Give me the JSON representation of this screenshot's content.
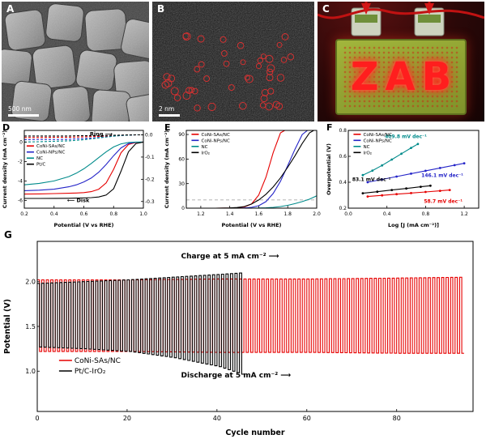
{
  "panels": {
    "a": {
      "label": "A",
      "scale_bar": "500 nm"
    },
    "b": {
      "label": "B",
      "scale_bar": "2 nm",
      "circle_count": 46
    },
    "c": {
      "label": "C",
      "led_text": "ZAB"
    },
    "d": {
      "label": "D"
    },
    "e": {
      "label": "E"
    },
    "f": {
      "label": "F"
    },
    "g": {
      "label": "G"
    }
  },
  "colors": {
    "coni_sas_red": "#e60000",
    "coni_nps_blue": "#2424c8",
    "nc_teal": "#008B8B",
    "ptc_black": "#000000",
    "iro2_black": "#000000",
    "circle_red": "#e03030",
    "led_red": "#ff1e1e",
    "pcb_green": "#93a832"
  },
  "chart_data": [
    {
      "id": "panel-d",
      "type": "line",
      "xlabel": "Potential (V vs RHE)",
      "ylabel": "Current density (mA cm⁻²)",
      "xlim": [
        0.2,
        1.0
      ],
      "xticks": [
        "0.2",
        "0.4",
        "0.6",
        "0.8",
        "1.0"
      ],
      "ylim": [
        -6.8,
        1.2
      ],
      "yticks": [
        "0",
        "-2",
        "-4",
        "-6"
      ],
      "y2lim": [
        -0.33,
        0.02
      ],
      "y2ticks": [
        "0.0",
        "-0.1",
        "-0.2",
        "-0.3"
      ],
      "x": [
        0.2,
        0.3,
        0.4,
        0.5,
        0.55,
        0.6,
        0.65,
        0.7,
        0.75,
        0.8,
        0.85,
        0.9,
        0.95,
        1.0
      ],
      "series": [
        {
          "name": "CoNi-SAs/NC disk",
          "color": "#e60000",
          "y": [
            -5.35,
            -5.33,
            -5.3,
            -5.27,
            -5.24,
            -5.2,
            -5.1,
            -4.85,
            -4.2,
            -2.8,
            -1.1,
            -0.25,
            -0.03,
            0
          ]
        },
        {
          "name": "CoNi-NPs/NC disk",
          "color": "#2424c8",
          "y": [
            -5.0,
            -4.95,
            -4.85,
            -4.6,
            -4.4,
            -4.1,
            -3.7,
            -3.1,
            -2.3,
            -1.4,
            -0.6,
            -0.15,
            -0.02,
            0
          ]
        },
        {
          "name": "NC disk",
          "color": "#008B8B",
          "y": [
            -4.4,
            -4.25,
            -4.0,
            -3.55,
            -3.2,
            -2.75,
            -2.2,
            -1.6,
            -1.0,
            -0.5,
            -0.18,
            -0.04,
            0,
            0
          ]
        },
        {
          "name": "Pt/C disk",
          "color": "#000000",
          "y": [
            -5.8,
            -5.8,
            -5.79,
            -5.78,
            -5.77,
            -5.75,
            -5.72,
            -5.65,
            -5.45,
            -4.8,
            -3.0,
            -1.0,
            -0.15,
            0
          ]
        },
        {
          "name": "CoNi-SAs/NC ring",
          "color": "#e60000",
          "axis": "right",
          "dash": true,
          "y": [
            -0.012,
            -0.012,
            -0.011,
            -0.011,
            -0.01,
            -0.009,
            -0.008,
            -0.007,
            -0.006,
            -0.004,
            -0.002,
            -0.001,
            0,
            0
          ]
        },
        {
          "name": "CoNi-NPs/NC ring",
          "color": "#2424c8",
          "axis": "right",
          "dash": true,
          "y": [
            -0.022,
            -0.021,
            -0.021,
            -0.02,
            -0.018,
            -0.017,
            -0.015,
            -0.012,
            -0.009,
            -0.006,
            -0.003,
            -0.001,
            0,
            0
          ]
        },
        {
          "name": "NC ring",
          "color": "#008B8B",
          "axis": "right",
          "dash": true,
          "y": [
            -0.032,
            -0.031,
            -0.029,
            -0.027,
            -0.025,
            -0.022,
            -0.018,
            -0.014,
            -0.01,
            -0.006,
            -0.003,
            -0.001,
            0,
            0
          ]
        },
        {
          "name": "Pt/C ring",
          "color": "#000000",
          "axis": "right",
          "dash": true,
          "y": [
            -0.005,
            -0.005,
            -0.005,
            -0.005,
            -0.004,
            -0.004,
            -0.004,
            -0.003,
            -0.003,
            -0.002,
            -0.001,
            0,
            0,
            0
          ]
        }
      ],
      "legend": {
        "rx": 0.02,
        "ry": 0.2,
        "row": 7.5,
        "len": 9,
        "items": [
          {
            "label": "CoNi-SAs/NC",
            "color": "#e60000"
          },
          {
            "label": "CoNi-NPs/NC",
            "color": "#2424c8"
          },
          {
            "label": "NC",
            "color": "#008B8B"
          },
          {
            "label": "Pt/C",
            "color": "#000000"
          }
        ]
      },
      "annotations": [
        {
          "text": "Ring ⟶",
          "rx": 0.55,
          "ry": 0.07,
          "bold": true,
          "size": 6.5
        },
        {
          "text": "⟵ Disk",
          "rx": 0.36,
          "ry": 0.92,
          "bold": true,
          "size": 6.5
        }
      ]
    },
    {
      "id": "panel-e",
      "type": "line",
      "xlabel": "Potential (V vs RHE)",
      "ylabel": "Current density (mA cm⁻²)",
      "xlim": [
        1.1,
        2.0
      ],
      "xticks": [
        "1.2",
        "1.4",
        "1.6",
        "1.8",
        "2.0"
      ],
      "ylim": [
        0,
        95
      ],
      "yticks": [
        "0",
        "30",
        "60",
        "90"
      ],
      "x": [
        1.1,
        1.2,
        1.3,
        1.4,
        1.45,
        1.5,
        1.55,
        1.6,
        1.65,
        1.7,
        1.75,
        1.8,
        1.85,
        1.9,
        1.95,
        2.0
      ],
      "series": [
        {
          "name": "CoNi-SAs/NC",
          "color": "#e60000",
          "y": [
            0,
            0,
            0,
            0.2,
            0.5,
            1.5,
            5,
            16,
            38,
            68,
            92,
            97,
            97,
            97,
            97,
            97
          ]
        },
        {
          "name": "CoNi-NPs/NC",
          "color": "#2424c8",
          "y": [
            0,
            0,
            0,
            0,
            0,
            0.3,
            1,
            3,
            8,
            18,
            33,
            52,
            72,
            90,
            97,
            97
          ]
        },
        {
          "name": "NC",
          "color": "#008B8B",
          "y": [
            0,
            0,
            0,
            0,
            0,
            0,
            0,
            0.2,
            0.5,
            1,
            2,
            3.5,
            5.5,
            8,
            11,
            15
          ]
        },
        {
          "name": "IrO₂",
          "color": "#000000",
          "y": [
            0,
            0,
            0,
            0.3,
            0.8,
            2,
            5,
            10,
            17,
            26,
            37,
            50,
            64,
            79,
            92,
            97
          ]
        }
      ],
      "legend": {
        "rx": 0.04,
        "ry": 0.05,
        "row": 7.5,
        "len": 9,
        "items": [
          {
            "label": "CoNi-SAs/NC",
            "color": "#e60000"
          },
          {
            "label": "CoNi-NPs/NC",
            "color": "#2424c8"
          },
          {
            "label": "NC",
            "color": "#008B8B"
          },
          {
            "label": "IrO₂",
            "color": "#000000"
          }
        ]
      },
      "annotations": [
        {
          "type": "hline",
          "y": 10,
          "dash": true,
          "color": "#999999"
        }
      ]
    },
    {
      "id": "panel-f",
      "type": "line",
      "xlabel": "Log [J (mA cm⁻²)]",
      "ylabel": "Overpotential (V)",
      "xlim": [
        0,
        1.35
      ],
      "xticks": [
        "0.0",
        "0.4",
        "0.8",
        "1.2"
      ],
      "ylim": [
        0.2,
        0.8
      ],
      "yticks": [
        "0.2",
        "0.4",
        "0.6",
        "0.8"
      ],
      "series": [
        {
          "name": "CoNi-SAs/NC",
          "color": "#e60000",
          "marker": true,
          "slope_label": "58.7 mV dec⁻¹",
          "x": [
            0.2,
            0.35,
            0.5,
            0.65,
            0.8,
            0.95,
            1.05
          ],
          "y": [
            0.29,
            0.299,
            0.308,
            0.316,
            0.325,
            0.334,
            0.34
          ]
        },
        {
          "name": "CoNi-NPs/NC",
          "color": "#2424c8",
          "marker": true,
          "slope_label": "146.1 mV dec⁻¹",
          "x": [
            0.2,
            0.35,
            0.5,
            0.65,
            0.8,
            0.95,
            1.1,
            1.2
          ],
          "y": [
            0.4,
            0.422,
            0.444,
            0.466,
            0.488,
            0.51,
            0.532,
            0.546
          ]
        },
        {
          "name": "NC",
          "color": "#008B8B",
          "marker": true,
          "slope_label": "409.8 mV dec⁻¹",
          "x": [
            0.15,
            0.25,
            0.35,
            0.45,
            0.55,
            0.65,
            0.72
          ],
          "y": [
            0.455,
            0.49,
            0.53,
            0.575,
            0.62,
            0.665,
            0.695
          ]
        },
        {
          "name": "IrO₂",
          "color": "#000000",
          "marker": true,
          "slope_label": "83.1 mV dec⁻¹",
          "x": [
            0.15,
            0.3,
            0.45,
            0.6,
            0.75,
            0.85
          ],
          "y": [
            0.315,
            0.327,
            0.34,
            0.352,
            0.365,
            0.373
          ]
        }
      ],
      "legend": {
        "rx": 0.04,
        "ry": 0.05,
        "row": 7.5,
        "len": 9,
        "items": [
          {
            "label": "CoNi-SAs/NC",
            "color": "#e60000"
          },
          {
            "label": "CoNi-NPs/NC",
            "color": "#2424c8"
          },
          {
            "label": "NC",
            "color": "#008B8B"
          },
          {
            "label": "IrO₂",
            "color": "#000000"
          }
        ]
      },
      "annotations": [
        {
          "text": "409.8 mV dec⁻¹",
          "rx": 0.28,
          "ry": 0.1,
          "color": "#008B8B",
          "bold": true,
          "size": 6
        },
        {
          "text": "146.1 mV dec⁻¹",
          "rx": 0.56,
          "ry": 0.6,
          "color": "#2424c8",
          "bold": true,
          "size": 6
        },
        {
          "text": "83.1 mV dec⁻¹",
          "rx": 0.03,
          "ry": 0.65,
          "color": "#000000",
          "bold": true,
          "size": 6
        },
        {
          "text": "58.7 mV dec⁻¹",
          "rx": 0.58,
          "ry": 0.93,
          "color": "#e60000",
          "bold": true,
          "size": 6
        }
      ]
    },
    {
      "id": "panel-g",
      "type": "cycling",
      "xlabel": "Cycle number",
      "ylabel": "Potential (V)",
      "xlim": [
        0,
        97
      ],
      "xticks": [
        "0",
        "20",
        "40",
        "60",
        "80"
      ],
      "ylim": [
        0.55,
        2.45
      ],
      "yticks": [
        "1.0",
        "1.5",
        "2.0"
      ],
      "series": [
        {
          "name": "CoNi-SAs/NC",
          "color": "#e60000",
          "cycle_start": 0,
          "cycle_end": 95,
          "sample_cycles": [
            0,
            20,
            40,
            60,
            80,
            95
          ],
          "charge_V": [
            2.02,
            2.02,
            2.03,
            2.03,
            2.04,
            2.05
          ],
          "discharge_V": [
            1.22,
            1.22,
            1.21,
            1.21,
            1.2,
            1.2
          ]
        },
        {
          "name": "Pt/C-IrO₂",
          "color": "#000000",
          "cycle_start": 0,
          "cycle_end": 46,
          "sample_cycles": [
            0,
            10,
            20,
            30,
            40,
            46
          ],
          "charge_V": [
            1.98,
            2.0,
            2.02,
            2.05,
            2.08,
            2.1
          ],
          "discharge_V": [
            1.27,
            1.25,
            1.22,
            1.15,
            1.05,
            0.95
          ]
        }
      ],
      "legend": {
        "rx": 0.05,
        "ry": 0.7,
        "row": 13,
        "len": 16,
        "items": [
          {
            "label": "CoNi-SAs/NC",
            "color": "#e60000"
          },
          {
            "label": "Pt/C-IrO₂",
            "color": "#000000"
          }
        ]
      },
      "annotations": [
        {
          "text": "Charge at 5 mA cm⁻²  ⟶",
          "rx": 0.33,
          "ry": 0.1,
          "bold": true,
          "size": 9
        },
        {
          "text": "Discharge at 5 mA cm⁻²  ⟶",
          "rx": 0.33,
          "ry": 0.8,
          "bold": true,
          "size": 9
        }
      ]
    }
  ]
}
